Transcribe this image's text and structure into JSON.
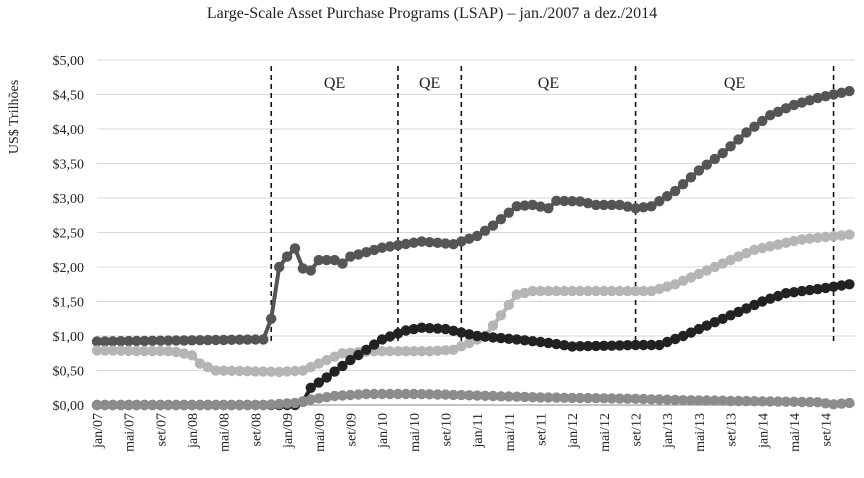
{
  "chart_data": {
    "type": "line",
    "title": "Large-Scale Asset Purchase Programs (LSAP) – jan./2007 a dez./2014",
    "ylabel": "US$ Trilhões",
    "xlabel": "",
    "ylim": [
      0,
      5
    ],
    "y_ticks": [
      "$0,00",
      "$0,50",
      "$1,00",
      "$1,50",
      "$2,00",
      "$2,50",
      "$3,00",
      "$3,50",
      "$4,00",
      "$4,50",
      "$5,00"
    ],
    "x_ticks": [
      {
        "label": "jan/07",
        "m": 0
      },
      {
        "label": "mai/07",
        "m": 4
      },
      {
        "label": "set/07",
        "m": 8
      },
      {
        "label": "jan/08",
        "m": 12
      },
      {
        "label": "mai/08",
        "m": 16
      },
      {
        "label": "set/08",
        "m": 20
      },
      {
        "label": "jan/09",
        "m": 24
      },
      {
        "label": "mai/09",
        "m": 28
      },
      {
        "label": "set/09",
        "m": 32
      },
      {
        "label": "jan/10",
        "m": 36
      },
      {
        "label": "mai/10",
        "m": 40
      },
      {
        "label": "set/10",
        "m": 44
      },
      {
        "label": "jan/11",
        "m": 48
      },
      {
        "label": "mai/11",
        "m": 52
      },
      {
        "label": "set/11",
        "m": 56
      },
      {
        "label": "jan/12",
        "m": 60
      },
      {
        "label": "mai/12",
        "m": 64
      },
      {
        "label": "set/12",
        "m": 68
      },
      {
        "label": "jan/13",
        "m": 72
      },
      {
        "label": "mai/13",
        "m": 76
      },
      {
        "label": "set/13",
        "m": 80
      },
      {
        "label": "jan/14",
        "m": 84
      },
      {
        "label": "mai/14",
        "m": 88
      },
      {
        "label": "set/14",
        "m": 92
      }
    ],
    "grid": true,
    "legend": "none",
    "period_markers": [
      {
        "label": "QE",
        "start": "nov/08",
        "end": "mar/10"
      },
      {
        "label": "QE",
        "start": "mar/10",
        "end": "nov/10"
      },
      {
        "label": "QE",
        "start": "nov/10",
        "end": "set/12"
      },
      {
        "label": "QE",
        "start": "set/12",
        "end": "out/14"
      }
    ],
    "series": [
      {
        "color": "#555555",
        "keypoints": [
          [
            "jan/07",
            0.92
          ],
          [
            "out/08",
            0.95
          ],
          [
            "nov/08",
            1.25
          ],
          [
            "dez/08",
            2.0
          ],
          [
            "jan/09",
            2.15
          ],
          [
            "fev/09",
            2.27
          ],
          [
            "mar/09",
            1.98
          ],
          [
            "abr/09",
            1.95
          ],
          [
            "mai/09",
            2.1
          ],
          [
            "jul/09",
            2.1
          ],
          [
            "ago/09",
            2.05
          ],
          [
            "set/09",
            2.15
          ],
          [
            "jan/10",
            2.28
          ],
          [
            "jun/10",
            2.37
          ],
          [
            "out/10",
            2.33
          ],
          [
            "jan/11",
            2.45
          ],
          [
            "mar/11",
            2.6
          ],
          [
            "jun/11",
            2.88
          ],
          [
            "ago/11",
            2.9
          ],
          [
            "out/11",
            2.85
          ],
          [
            "nov/11",
            2.96
          ],
          [
            "fev/12",
            2.95
          ],
          [
            "abr/12",
            2.9
          ],
          [
            "jul/12",
            2.9
          ],
          [
            "set/12",
            2.85
          ],
          [
            "nov/12",
            2.88
          ],
          [
            "fev/13",
            3.1
          ],
          [
            "mai/13",
            3.4
          ],
          [
            "ago/13",
            3.65
          ],
          [
            "nov/13",
            3.95
          ],
          [
            "fev/14",
            4.2
          ],
          [
            "mai/14",
            4.35
          ],
          [
            "ago/14",
            4.45
          ],
          [
            "dez/14",
            4.55
          ]
        ]
      },
      {
        "color": "#b5b5b5",
        "keypoints": [
          [
            "jan/07",
            0.79
          ],
          [
            "out/07",
            0.78
          ],
          [
            "nov/07",
            0.77
          ],
          [
            "jan/08",
            0.72
          ],
          [
            "fev/08",
            0.6
          ],
          [
            "abr/08",
            0.5
          ],
          [
            "dez/08",
            0.48
          ],
          [
            "mar/09",
            0.5
          ],
          [
            "jun/09",
            0.65
          ],
          [
            "ago/09",
            0.75
          ],
          [
            "dez/09",
            0.78
          ],
          [
            "jul/10",
            0.78
          ],
          [
            "out/10",
            0.8
          ],
          [
            "dez/10",
            0.9
          ],
          [
            "fev/11",
            1.0
          ],
          [
            "abr/11",
            1.3
          ],
          [
            "jun/11",
            1.6
          ],
          [
            "ago/11",
            1.65
          ],
          [
            "jul/12",
            1.65
          ],
          [
            "nov/12",
            1.65
          ],
          [
            "fev/13",
            1.75
          ],
          [
            "jun/13",
            1.95
          ],
          [
            "dez/13",
            2.25
          ],
          [
            "jun/14",
            2.4
          ],
          [
            "dez/14",
            2.47
          ]
        ]
      },
      {
        "color": "#222222",
        "keypoints": [
          [
            "jan/07",
            0.0
          ],
          [
            "out/08",
            0.0
          ],
          [
            "fev/09",
            0.0
          ],
          [
            "mar/09",
            0.05
          ],
          [
            "abr/09",
            0.25
          ],
          [
            "jun/09",
            0.4
          ],
          [
            "set/09",
            0.65
          ],
          [
            "jan/10",
            0.95
          ],
          [
            "abr/10",
            1.08
          ],
          [
            "jun/10",
            1.12
          ],
          [
            "set/10",
            1.1
          ],
          [
            "jan/11",
            1.0
          ],
          [
            "jun/11",
            0.95
          ],
          [
            "out/11",
            0.9
          ],
          [
            "jan/12",
            0.85
          ],
          [
            "jun/12",
            0.86
          ],
          [
            "set/12",
            0.87
          ],
          [
            "dez/12",
            0.87
          ],
          [
            "mar/13",
            1.0
          ],
          [
            "jun/13",
            1.15
          ],
          [
            "set/13",
            1.3
          ],
          [
            "jan/14",
            1.5
          ],
          [
            "abr/14",
            1.62
          ],
          [
            "ago/14",
            1.68
          ],
          [
            "dez/14",
            1.75
          ]
        ]
      },
      {
        "color": "#8c8c8c",
        "keypoints": [
          [
            "jan/07",
            0.0
          ],
          [
            "out/08",
            0.0
          ],
          [
            "fev/09",
            0.03
          ],
          [
            "abr/09",
            0.08
          ],
          [
            "jul/09",
            0.13
          ],
          [
            "nov/09",
            0.16
          ],
          [
            "mai/10",
            0.16
          ],
          [
            "set/10",
            0.15
          ],
          [
            "mar/11",
            0.13
          ],
          [
            "set/11",
            0.11
          ],
          [
            "mar/12",
            0.1
          ],
          [
            "set/12",
            0.09
          ],
          [
            "mar/13",
            0.07
          ],
          [
            "set/13",
            0.06
          ],
          [
            "mar/14",
            0.05
          ],
          [
            "ago/14",
            0.04
          ],
          [
            "out/14",
            0.01
          ],
          [
            "dez/14",
            0.03
          ]
        ]
      }
    ]
  }
}
